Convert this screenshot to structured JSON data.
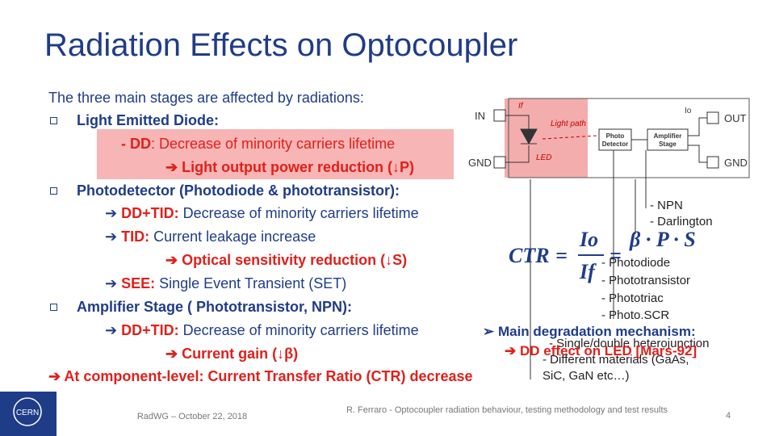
{
  "header": {
    "title": "Radiation Effects on Optocoupler"
  },
  "body": {
    "intro": "The three main stages are affected by radiations:",
    "sections": [
      {
        "heading": "Light Emitted Diode:",
        "lines": [
          {
            "label": "- DD",
            "text": ": Decrease of minority carriers lifetime"
          },
          {
            "label": "",
            "text": "Light output power reduction (↓P)"
          }
        ]
      },
      {
        "heading": "Photodetector (Photodiode & phototransistor):",
        "lines": [
          {
            "label": "DD+TID:",
            "text": " Decrease of minority carriers lifetime"
          },
          {
            "label": "TID:",
            "text": " Current leakage increase"
          },
          {
            "label": "",
            "text": "Optical sensitivity reduction (↓S)"
          },
          {
            "label": "SEE:",
            "text": " Single Event Transient (SET)"
          }
        ]
      },
      {
        "heading": "Amplifier Stage ( Phototransistor, NPN):",
        "lines": [
          {
            "label": "DD+TID:",
            "text": " Decrease of minority carriers lifetime"
          },
          {
            "label": "",
            "text": "Current gain (↓β)"
          }
        ]
      }
    ],
    "conclusion": "At component-level: Current Transfer Ratio (CTR) decrease"
  },
  "diagram": {
    "in": "IN",
    "gnd_left": "GND",
    "out": "OUT",
    "gnd_right": "GND",
    "if": "If",
    "io": "Io",
    "light_path": "Light path",
    "led": "LED",
    "photo_detector": [
      "Photo",
      "Detector"
    ],
    "amplifier": [
      "Amplifier",
      "Stage"
    ]
  },
  "formula": {
    "lhs": "CTR",
    "num": "Io",
    "den": "If",
    "rhs": "β · P · S"
  },
  "notes": {
    "amplifier_types": [
      "- NPN",
      "- Darlington"
    ],
    "detector_types": [
      "- Photodiode",
      "- Phototransistor",
      "- Phototriac",
      "- Photo.SCR"
    ],
    "mechanism": "Main degradation mechanism:",
    "effect": "DD effect on LED [Mars-92]",
    "led_details": [
      "- Single/double heterojunction",
      "- Different materials (GaAs,",
      "SiC, GaN etc…)"
    ]
  },
  "footer": {
    "logo": "CERN",
    "event": "RadWG – October 22, 2018",
    "citation": "R. Ferraro - Optocoupler radiation behaviour, testing methodology and test results",
    "page": "4"
  }
}
